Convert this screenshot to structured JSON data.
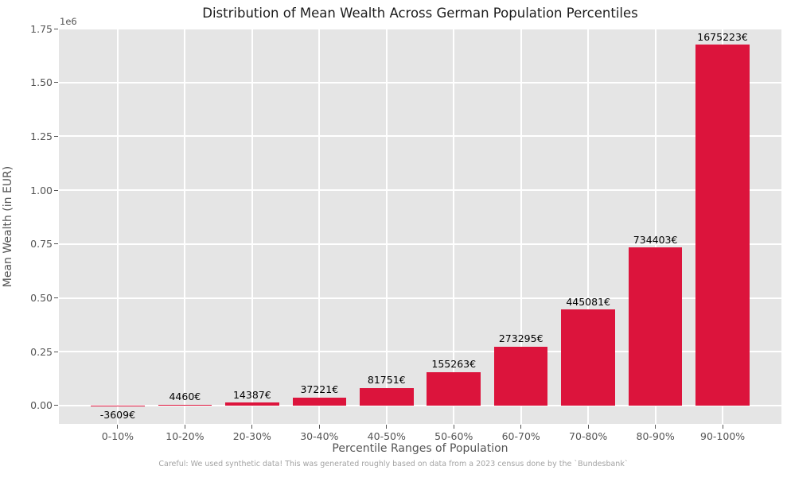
{
  "chart_data": {
    "type": "bar",
    "title": "Distribution of Mean Wealth Across German Population Percentiles",
    "xlabel": "Percentile Ranges of Population",
    "ylabel": "Mean Wealth (in EUR)",
    "categories": [
      "0-10%",
      "10-20%",
      "20-30%",
      "30-40%",
      "40-50%",
      "50-60%",
      "60-70%",
      "70-80%",
      "80-90%",
      "90-100%"
    ],
    "values": [
      -3609,
      4460,
      14387,
      37221,
      81751,
      155263,
      273295,
      445081,
      734403,
      1675223
    ],
    "value_labels": [
      "-3609€",
      "4460€",
      "14387€",
      "37221€",
      "81751€",
      "155263€",
      "273295€",
      "445081€",
      "734403€",
      "1675223€"
    ],
    "y_ticks": [
      0,
      250000,
      500000,
      750000,
      1000000,
      1250000,
      1500000,
      1750000
    ],
    "y_tick_labels": [
      "0.00",
      "0.25",
      "0.50",
      "0.75",
      "1.00",
      "1.25",
      "1.50",
      "1.75"
    ],
    "y_offset_label": "1e6",
    "ylim": [
      -85000,
      1750000
    ],
    "grid": true,
    "legend_position": "none",
    "bar_color": "#dc143c",
    "plot_background": "#e5e5e5",
    "grid_color": "#ffffff",
    "annotation": "Careful: We used synthetic data! This was generated roughly based on data from a 2023 census done by the `Bundesbank`"
  }
}
